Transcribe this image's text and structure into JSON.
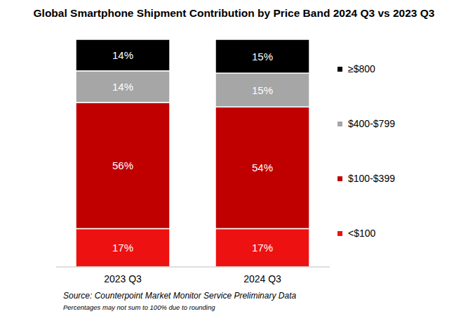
{
  "chart_data": {
    "type": "bar",
    "stacked": true,
    "title": "Global Smartphone Shipment Contribution by Price Band 2024 Q3 vs 2023 Q3",
    "categories": [
      "2023 Q3",
      "2024 Q3"
    ],
    "series": [
      {
        "name": "<$100",
        "color": "#ee1111",
        "values": [
          17,
          17
        ],
        "value_labels": [
          "17%",
          "17%"
        ]
      },
      {
        "name": "$100-$399",
        "color": "#c00000",
        "values": [
          56,
          54
        ],
        "value_labels": [
          "56%",
          "54%"
        ]
      },
      {
        "name": "$400-$799",
        "color": "#a6a6a6",
        "values": [
          14,
          15
        ],
        "value_labels": [
          "14%",
          "15%"
        ]
      },
      {
        "name": "≥$800",
        "color": "#000000",
        "values": [
          14,
          15
        ],
        "value_labels": [
          "14%",
          "15%"
        ]
      }
    ],
    "ylim": [
      0,
      101
    ],
    "tick_labels": "x",
    "data_labels": true,
    "legend": "right",
    "annotations": [
      "Source: Counterpoint Market Monitor Service Preliminary Data",
      "Percentages may not sum to 100% due to rounding"
    ]
  }
}
